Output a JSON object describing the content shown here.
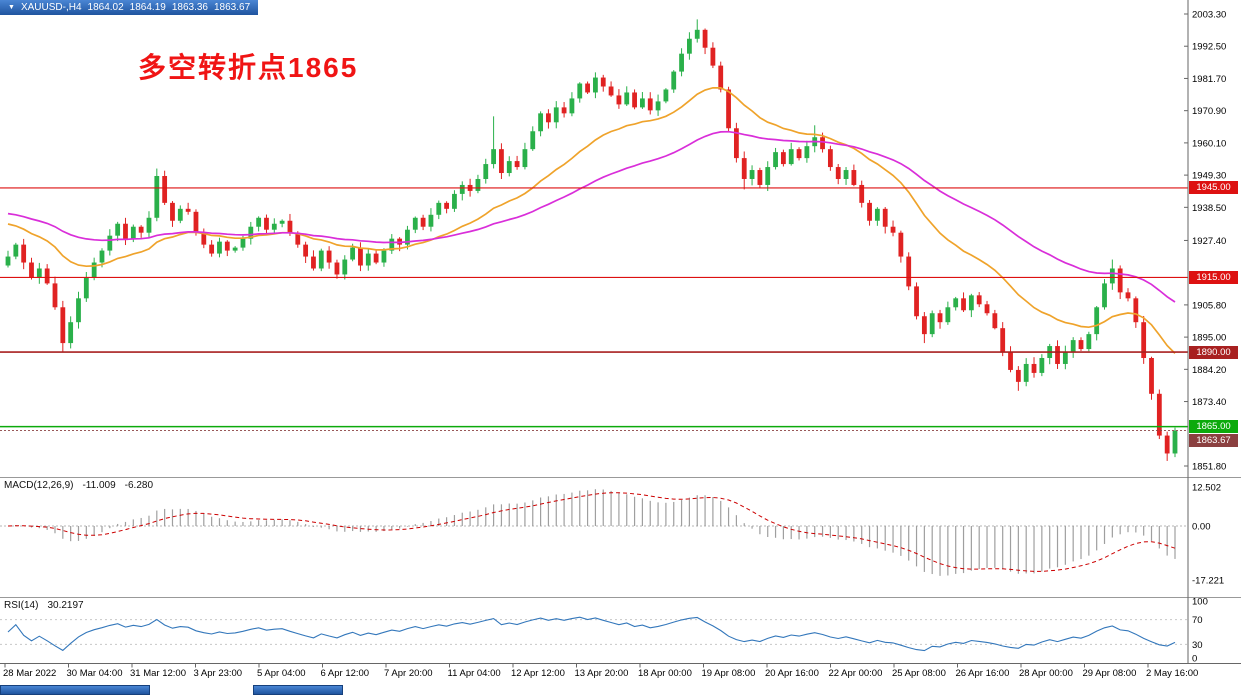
{
  "window": {
    "title_bar": {
      "menu_icon": "▼",
      "symbol_period": "XAUUSD-,H4",
      "open": "1864.02",
      "high": "1864.19",
      "low": "1863.36",
      "close": "1863.67"
    }
  },
  "annotation": {
    "text": "多空转折点1865",
    "color": "#f01414"
  },
  "chart_data": {
    "type": "candlestick",
    "title": "XAUUSD-,H4",
    "symbol": "XAUUSD-",
    "timeframe": "H4",
    "price_range": {
      "top": 2003.3,
      "bottom": 1851.8
    },
    "price_axis_labels": [
      "2003.30",
      "1992.50",
      "1981.70",
      "1970.90",
      "1960.10",
      "1949.30",
      "1938.50",
      "1927.40",
      "1905.80",
      "1895.00",
      "1884.20",
      "1873.40",
      "1851.80"
    ],
    "time_axis_labels": [
      "28 Mar 2022",
      "30 Mar 04:00",
      "31 Mar 12:00",
      "3 Apr 23:00",
      "5 Apr 04:00",
      "6 Apr 12:00",
      "7 Apr 20:00",
      "11 Apr 04:00",
      "12 Apr 12:00",
      "13 Apr 20:00",
      "18 Apr 00:00",
      "19 Apr 08:00",
      "20 Apr 16:00",
      "22 Apr 00:00",
      "25 Apr 08:00",
      "26 Apr 16:00",
      "28 Apr 00:00",
      "29 Apr 08:00",
      "2 May 16:00"
    ],
    "candles": {
      "first_open": 1919,
      "closes": [
        1922,
        1926,
        1920,
        1915,
        1918,
        1913,
        1905,
        1893,
        1900,
        1908,
        1915,
        1920,
        1924,
        1929,
        1933,
        1928,
        1932,
        1930,
        1935,
        1949,
        1940,
        1934,
        1938,
        1937,
        1930,
        1926,
        1923,
        1927,
        1924,
        1925,
        1928,
        1932,
        1935,
        1931,
        1933,
        1934,
        1930,
        1926,
        1922,
        1918,
        1924,
        1920,
        1916,
        1921,
        1925,
        1919,
        1923,
        1920,
        1924,
        1928,
        1926,
        1931,
        1935,
        1932,
        1936,
        1940,
        1938,
        1943,
        1946,
        1944,
        1948,
        1953,
        1958,
        1950,
        1954,
        1952,
        1958,
        1964,
        1970,
        1967,
        1972,
        1970,
        1975,
        1980,
        1977,
        1982,
        1979,
        1976,
        1973,
        1977,
        1972,
        1975,
        1971,
        1974,
        1978,
        1984,
        1990,
        1995,
        1998,
        1992,
        1986,
        1978,
        1965,
        1955,
        1948,
        1951,
        1946,
        1952,
        1957,
        1953,
        1958,
        1955,
        1959,
        1962,
        1958,
        1952,
        1948,
        1951,
        1946,
        1940,
        1934,
        1938,
        1932,
        1930,
        1922,
        1912,
        1902,
        1896,
        1903,
        1900,
        1905,
        1908,
        1904,
        1909,
        1906,
        1903,
        1898,
        1890,
        1884,
        1880,
        1886,
        1883,
        1888,
        1892,
        1886,
        1890,
        1894,
        1891,
        1896,
        1905,
        1913,
        1918,
        1910,
        1908,
        1900,
        1888,
        1876,
        1862,
        1856,
        1863.67
      ],
      "wicks": {
        "7": {
          "low": 1890
        },
        "19": {
          "high": 1951.5
        },
        "62": {
          "high": 1969
        },
        "88": {
          "high": 2001.5
        },
        "94": {
          "low": 1944.5
        },
        "103": {
          "high": 1966
        },
        "117": {
          "low": 1893
        },
        "129": {
          "low": 1877
        },
        "141": {
          "high": 1921
        },
        "148": {
          "low": 1853.5
        }
      }
    },
    "moving_averages": [
      {
        "name": "ma-fast-orange",
        "period": 21,
        "seed": 1934,
        "color": "#efa32b"
      },
      {
        "name": "ma-slow-magenta",
        "period": 50,
        "seed": 1937,
        "color": "#d92ed9"
      }
    ],
    "hlines": [
      {
        "price": 1945.0,
        "label": "1945.00",
        "color": "#dd1111",
        "width": 1.2
      },
      {
        "price": 1915.0,
        "label": "1915.00",
        "color": "#dd1111",
        "width": 1.2
      },
      {
        "price": 1890.0,
        "label": "1890.00",
        "color": "#a82020",
        "width": 1.6
      },
      {
        "price": 1865.0,
        "label": "1865.00",
        "color": "#0caa0c",
        "width": 1.6
      }
    ],
    "bid": {
      "price": 1863.67,
      "label": "1863.67",
      "color": "#8b4040"
    },
    "macd": {
      "header": "MACD(12,26,9)",
      "value_main": "-11.009",
      "value_signal": "-6.280",
      "fast": 12,
      "slow": 26,
      "signal": 9,
      "axis_labels": [
        {
          "text": "12.502",
          "value": 12.502
        },
        {
          "text": "0.00",
          "value": 0
        },
        {
          "text": "-17.221",
          "value": -17.221
        }
      ],
      "histogram_color": "#9f9f9f",
      "signal_color": "#cc0000"
    },
    "rsi": {
      "header": "RSI(14)",
      "value": "30.2197",
      "period": 14,
      "axis_labels": [
        {
          "text": "100",
          "value": 100
        },
        {
          "text": "70",
          "value": 70
        },
        {
          "text": "30",
          "value": 30
        },
        {
          "text": "0",
          "value": 0
        }
      ],
      "levels": [
        70,
        30
      ],
      "line_color": "#3377bb"
    },
    "colors": {
      "up": "#2ab04a",
      "down": "#e02222",
      "background": "#ffffff"
    }
  }
}
